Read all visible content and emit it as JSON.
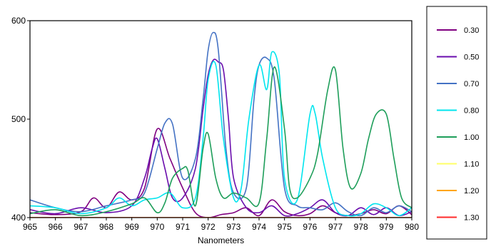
{
  "chart_data": {
    "type": "line",
    "xlabel": "Nanometers",
    "ylabel": "",
    "xlim": [
      965,
      980
    ],
    "ylim": [
      400,
      600
    ],
    "x_ticks": [
      "965",
      "966",
      "967",
      "968",
      "969",
      "970",
      "971",
      "972",
      "973",
      "974",
      "975",
      "976",
      "977",
      "978",
      "979",
      "980"
    ],
    "y_ticks": [
      "400",
      "500",
      "600"
    ],
    "legend_position": "right",
    "grid": false,
    "series": [
      {
        "name": "0.30",
        "color": "#800080",
        "x": [
          965,
          966,
          967,
          967.5,
          968,
          968.5,
          969,
          969.5,
          970,
          970.5,
          971,
          971.5,
          972,
          972.5,
          973,
          973.5,
          974,
          974.5,
          975,
          975.5,
          976,
          976.5,
          977,
          977.5,
          978,
          978.5,
          979,
          979.5,
          980
        ],
        "y": [
          405,
          403,
          406,
          420,
          410,
          426,
          418,
          430,
          490,
          460,
          430,
          405,
          400,
          403,
          405,
          410,
          402,
          418,
          406,
          402,
          404,
          412,
          405,
          402,
          404,
          408,
          404,
          412,
          403
        ]
      },
      {
        "name": "0.50",
        "color": "#6a0dad",
        "x": [
          965,
          966,
          967,
          968,
          969,
          969.5,
          969.8,
          970,
          970.3,
          970.6,
          971,
          971.5,
          971.8,
          972,
          972.2,
          972.4,
          972.6,
          972.8,
          973,
          973.5,
          974,
          974.5,
          975,
          975.5,
          976,
          976.5,
          977,
          977.5,
          978,
          978.5,
          979,
          979.5,
          980
        ],
        "y": [
          408,
          404,
          410,
          405,
          412,
          440,
          470,
          480,
          450,
          420,
          420,
          450,
          510,
          545,
          560,
          558,
          550,
          500,
          440,
          410,
          405,
          412,
          402,
          404,
          410,
          418,
          405,
          402,
          410,
          403,
          410,
          402,
          406
        ]
      },
      {
        "name": "0.70",
        "color": "#4472c4",
        "x": [
          965,
          966,
          967,
          968,
          969,
          969.5,
          970,
          970.3,
          970.6,
          971,
          971.5,
          971.8,
          972,
          972.2,
          972.4,
          972.7,
          973,
          973.5,
          973.8,
          974,
          974.3,
          974.6,
          975,
          975.5,
          976,
          976.5,
          977,
          977.5,
          978,
          978.5,
          979,
          979.5,
          980
        ],
        "y": [
          418,
          410,
          406,
          412,
          418,
          425,
          470,
          496,
          495,
          440,
          460,
          520,
          570,
          588,
          570,
          470,
          425,
          430,
          520,
          555,
          562,
          540,
          430,
          412,
          410,
          408,
          415,
          406,
          402,
          410,
          405,
          412,
          406
        ]
      },
      {
        "name": "0.80",
        "color": "#00e5ee",
        "x": [
          965,
          966,
          967,
          968,
          968.5,
          969,
          969.5,
          970,
          970.5,
          971,
          971.5,
          971.8,
          972,
          972.3,
          972.6,
          973,
          973.3,
          973.6,
          974,
          974.3,
          974.5,
          974.8,
          975,
          975.5,
          976,
          976.2,
          976.5,
          977,
          977.5,
          978,
          978.5,
          979,
          979.5,
          980
        ],
        "y": [
          412,
          410,
          404,
          410,
          420,
          412,
          418,
          420,
          425,
          410,
          420,
          480,
          540,
          555,
          480,
          420,
          430,
          500,
          555,
          530,
          568,
          545,
          440,
          418,
          505,
          506,
          460,
          410,
          402,
          404,
          414,
          410,
          402,
          410
        ]
      },
      {
        "name": "1.00",
        "color": "#1e9e5a",
        "x": [
          965,
          966,
          967,
          968,
          969,
          969.5,
          970,
          970.3,
          970.6,
          971,
          971.2,
          971.5,
          971.8,
          972,
          972.3,
          972.6,
          973,
          973.5,
          974,
          974.3,
          974.6,
          975,
          975.2,
          975.5,
          976,
          976.3,
          976.7,
          977,
          977.3,
          977.6,
          978,
          978.3,
          978.6,
          979,
          979.3,
          979.6,
          980
        ],
        "y": [
          404,
          408,
          402,
          406,
          414,
          420,
          405,
          415,
          440,
          450,
          448,
          412,
          470,
          485,
          440,
          420,
          425,
          420,
          415,
          480,
          553,
          490,
          430,
          420,
          440,
          465,
          530,
          550,
          470,
          430,
          445,
          480,
          505,
          505,
          460,
          420,
          410
        ]
      },
      {
        "name": "1.10",
        "color": "#ffff66",
        "x": [
          965,
          980
        ],
        "y": [
          400,
          400
        ]
      },
      {
        "name": "1.20",
        "color": "#ffa500",
        "x": [
          965,
          980
        ],
        "y": [
          400,
          400
        ]
      },
      {
        "name": "1.30",
        "color": "#ff2a2a",
        "x": [
          965,
          980
        ],
        "y": [
          400,
          400
        ]
      }
    ]
  }
}
